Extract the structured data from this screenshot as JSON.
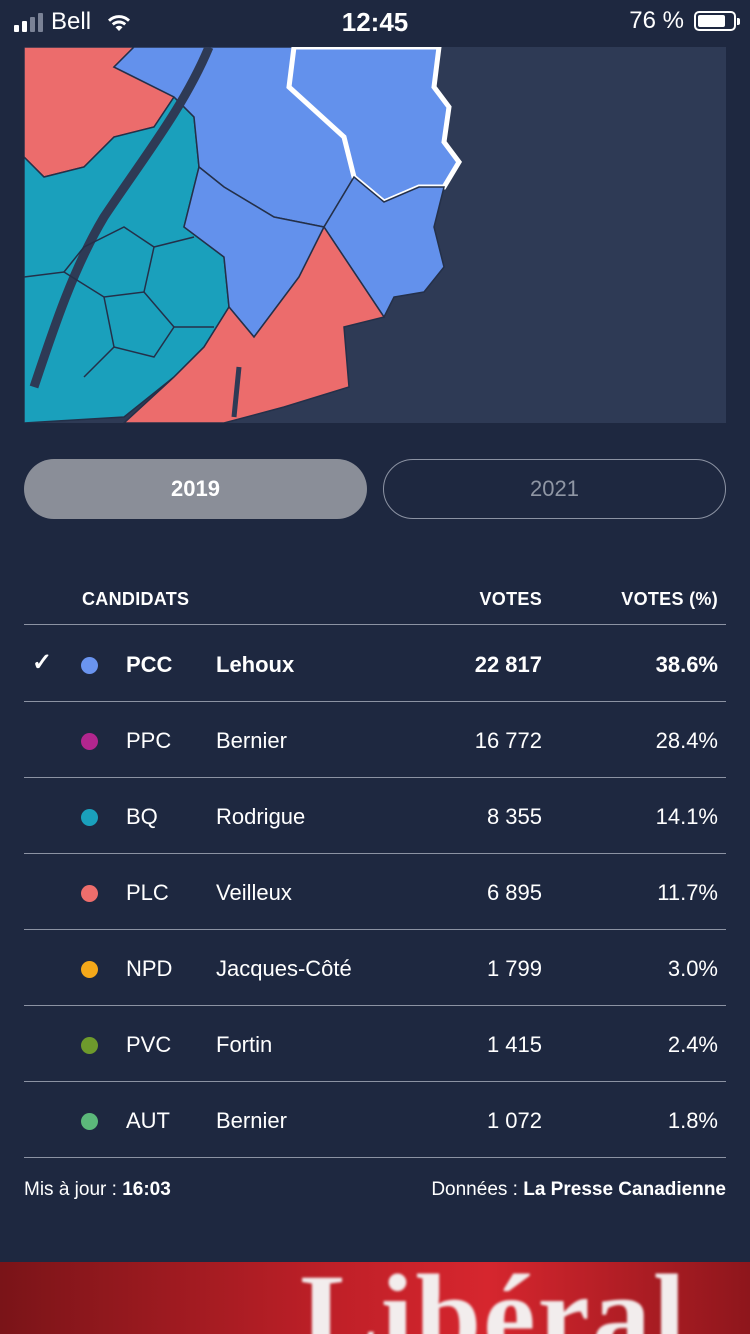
{
  "status_bar": {
    "carrier": "Bell",
    "time": "12:45",
    "battery_percent": "76 %",
    "battery_level": 0.76,
    "signal_bars_active": 2
  },
  "map": {
    "colors": {
      "PCC": "#6391ec",
      "BQ": "#1aa0bc",
      "PLC": "#ec6c6c",
      "background": "#2e3a55"
    }
  },
  "toggle": {
    "options": [
      "2019",
      "2021"
    ],
    "selected": "2019"
  },
  "table": {
    "headers": {
      "candidates": "CANDIDATS",
      "votes": "VOTES",
      "percent": "VOTES (%)"
    },
    "rows": [
      {
        "winner": true,
        "party": "PCC",
        "name": "Lehoux",
        "votes": "22 817",
        "percent": "38.6%",
        "color": "#6a94ef"
      },
      {
        "winner": false,
        "party": "PPC",
        "name": "Bernier",
        "votes": "16 772",
        "percent": "28.4%",
        "color": "#b2268e"
      },
      {
        "winner": false,
        "party": "BQ",
        "name": "Rodrigue",
        "votes": "8 355",
        "percent": "14.1%",
        "color": "#1aa0bc"
      },
      {
        "winner": false,
        "party": "PLC",
        "name": "Veilleux",
        "votes": "6 895",
        "percent": "11.7%",
        "color": "#ee6e6c"
      },
      {
        "winner": false,
        "party": "NPD",
        "name": "Jacques-Côté",
        "votes": "1 799",
        "percent": "3.0%",
        "color": "#f4a81a"
      },
      {
        "winner": false,
        "party": "PVC",
        "name": "Fortin",
        "votes": "1 415",
        "percent": "2.4%",
        "color": "#6e9a2c"
      },
      {
        "winner": false,
        "party": "AUT",
        "name": "Bernier",
        "votes": "1 072",
        "percent": "1.8%",
        "color": "#5cb87a"
      }
    ]
  },
  "footer": {
    "updated_label": "Mis à jour : ",
    "updated_time": "16:03",
    "source_label": "Données : ",
    "source_name": "La Presse Canadienne"
  },
  "banner": {
    "word": "Libéral"
  }
}
